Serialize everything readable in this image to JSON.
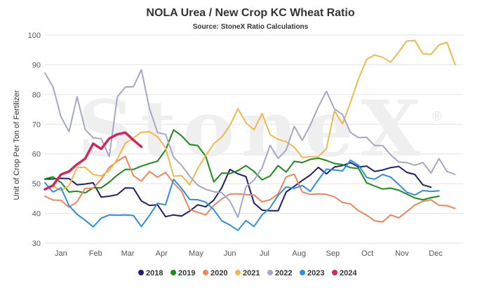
{
  "chart_data": {
    "type": "line",
    "title": "NOLA Urea / New Crop KC Wheat Ratio",
    "subtitle": "Source: StoneX Ratio Calculations",
    "ylabel": "Unit of Crop Per Ton of Fertilizer",
    "xlabel": "",
    "watermark": "StoneX",
    "watermark_mark": "®",
    "ylim": [
      30,
      100
    ],
    "yticks": [
      30,
      40,
      50,
      60,
      70,
      80,
      90,
      100
    ],
    "x_range": [
      0,
      52
    ],
    "xticks": [
      {
        "label": "Jan",
        "week": 2
      },
      {
        "label": "Feb",
        "week": 6.3
      },
      {
        "label": "Mar",
        "week": 10.3
      },
      {
        "label": "Apr",
        "week": 14.5
      },
      {
        "label": "May",
        "week": 18.8
      },
      {
        "label": "Jun",
        "week": 23
      },
      {
        "label": "Jul",
        "week": 27.3
      },
      {
        "label": "Aug",
        "week": 31.6
      },
      {
        "label": "Sep",
        "week": 35.8
      },
      {
        "label": "Oct",
        "week": 40.1
      },
      {
        "label": "Nov",
        "week": 44.4
      },
      {
        "label": "Dec",
        "week": 48.6
      }
    ],
    "grid": true,
    "legend_position": "bottom",
    "series": [
      {
        "name": "2018",
        "color": "#1f1f6e",
        "start_week": 0,
        "values": [
          51.5,
          51.6,
          51.8,
          51.7,
          49.6,
          49.9,
          50.3,
          45.5,
          45.8,
          46.3,
          48.6,
          48.5,
          44.2,
          42.7,
          42.9,
          38.9,
          39.5,
          39.1,
          40.8,
          42.9,
          42.2,
          44.5,
          48.7,
          54.8,
          53.3,
          52.4,
          43.5,
          41.1,
          40.9,
          40.9,
          47.2,
          49.1,
          51.1,
          52.9,
          55.5,
          53.3,
          55.6,
          56.1,
          57.1,
          55.6,
          55.9,
          54.1,
          54.6,
          55.4,
          55.8,
          53.8,
          53.1,
          49.6,
          48.8
        ]
      },
      {
        "name": "2019",
        "color": "#1a8c1a",
        "start_week": 0,
        "values": [
          51.6,
          52.3,
          50.4,
          47.2,
          47.5,
          46.9,
          48.6,
          48.6,
          50.5,
          52.9,
          54.8,
          54.8,
          55.9,
          56.8,
          57.6,
          61.3,
          68.1,
          66.1,
          63.2,
          62.8,
          59.2,
          50.6,
          53.6,
          53.4,
          54.4,
          56.1,
          54.1,
          51.3,
          52.6,
          56.1,
          53.9,
          57.5,
          57.1,
          58.2,
          58.6,
          57.8,
          56.8,
          56.4,
          55.4,
          55.1,
          50.3,
          49.2,
          48.2,
          48.5,
          47.8,
          46.5,
          45.2,
          44.6,
          45.3,
          45.8
        ]
      },
      {
        "name": "2020",
        "color": "#f0855a",
        "start_week": 0,
        "values": [
          45.8,
          44.5,
          44.4,
          42.1,
          43.9,
          48.4,
          48.5,
          51.5,
          55.5,
          57.6,
          59.2,
          52.7,
          50.9,
          54.1,
          52.2,
          53.8,
          50.2,
          47.4,
          41.3,
          40.4,
          39.5,
          42.7,
          44.9,
          46.5,
          46.6,
          46.3,
          46.2,
          43.9,
          44.6,
          46.6,
          52.3,
          53.2,
          47.2,
          46.4,
          46.6,
          46.4,
          45.6,
          43.7,
          43.2,
          40.9,
          39.4,
          37.5,
          37.2,
          39.5,
          38.5,
          40.6,
          42.8,
          44.1,
          44.6,
          42.7,
          42.6,
          41.7
        ]
      },
      {
        "name": "2021",
        "color": "#f2b84b",
        "start_week": 1,
        "values": [
          49.2,
          47.7,
          49.4,
          55.4,
          55.5,
          53.1,
          52.6,
          54.4,
          58.3,
          63.6,
          65.4,
          67.3,
          67.5,
          65.8,
          62.1,
          52.5,
          52.7,
          49.6,
          55.1,
          59.5,
          63.4,
          65.7,
          69.6,
          75.2,
          70.5,
          68.1,
          73.6,
          66.5,
          64.9,
          64.1,
          62.3,
          58.8,
          59.1,
          59.1,
          61.8,
          74.5,
          70.1,
          77.3,
          85.3,
          91.8,
          93.3,
          92.5,
          90.9,
          94.3,
          98.0,
          98.2,
          93.7,
          93.5,
          96.7,
          97.5,
          90.1
        ]
      },
      {
        "name": "2022",
        "color": "#a6a6c9",
        "start_week": 0,
        "values": [
          87.2,
          82.6,
          72.5,
          67.5,
          79.2,
          68.3,
          65.4,
          65.2,
          59.1,
          79.2,
          82.5,
          82.6,
          88.3,
          75.3,
          67.2,
          66.6,
          58.9,
          56.2,
          52.5,
          49.5,
          48.1,
          47.3,
          46.9,
          44.2,
          38.7,
          48.9,
          51.2,
          55.3,
          62.9,
          58.5,
          61.3,
          69.3,
          64.6,
          69.7,
          75.9,
          81.1,
          75.1,
          73.3,
          67.2,
          65.5,
          65.6,
          62.8,
          62.8,
          59.7,
          57.3,
          57.1,
          56.2,
          57.1,
          53.6,
          58.4,
          54.1,
          53.1
        ]
      },
      {
        "name": "2023",
        "color": "#2e8fe0",
        "start_week": 0,
        "values": [
          50.3,
          47.2,
          48.6,
          42.6,
          39.7,
          37.7,
          35.5,
          38.4,
          39.5,
          39.4,
          39.5,
          39.3,
          35.6,
          39.3,
          43.4,
          42.9,
          51.5,
          48.4,
          44.7,
          44.6,
          43.8,
          41.2,
          37.5,
          36.1,
          34.3,
          37.6,
          35.6,
          39.5,
          41.9,
          46.1,
          48.9,
          48.4,
          49.4,
          47.4,
          51.3,
          54.9,
          54.6,
          54.3,
          57.9,
          56.2,
          52.1,
          51.5,
          53.1,
          52.2,
          49.7,
          47.1,
          46.2,
          47.7,
          47.4,
          47.6
        ]
      },
      {
        "name": "2024",
        "color": "#d1275a",
        "start_week": 0,
        "values": [
          48.1,
          49.4,
          53.1,
          54.1,
          56.5,
          58.4,
          63.5,
          61.7,
          65.2,
          66.6,
          67.2,
          64.7,
          62.4
        ]
      }
    ]
  }
}
